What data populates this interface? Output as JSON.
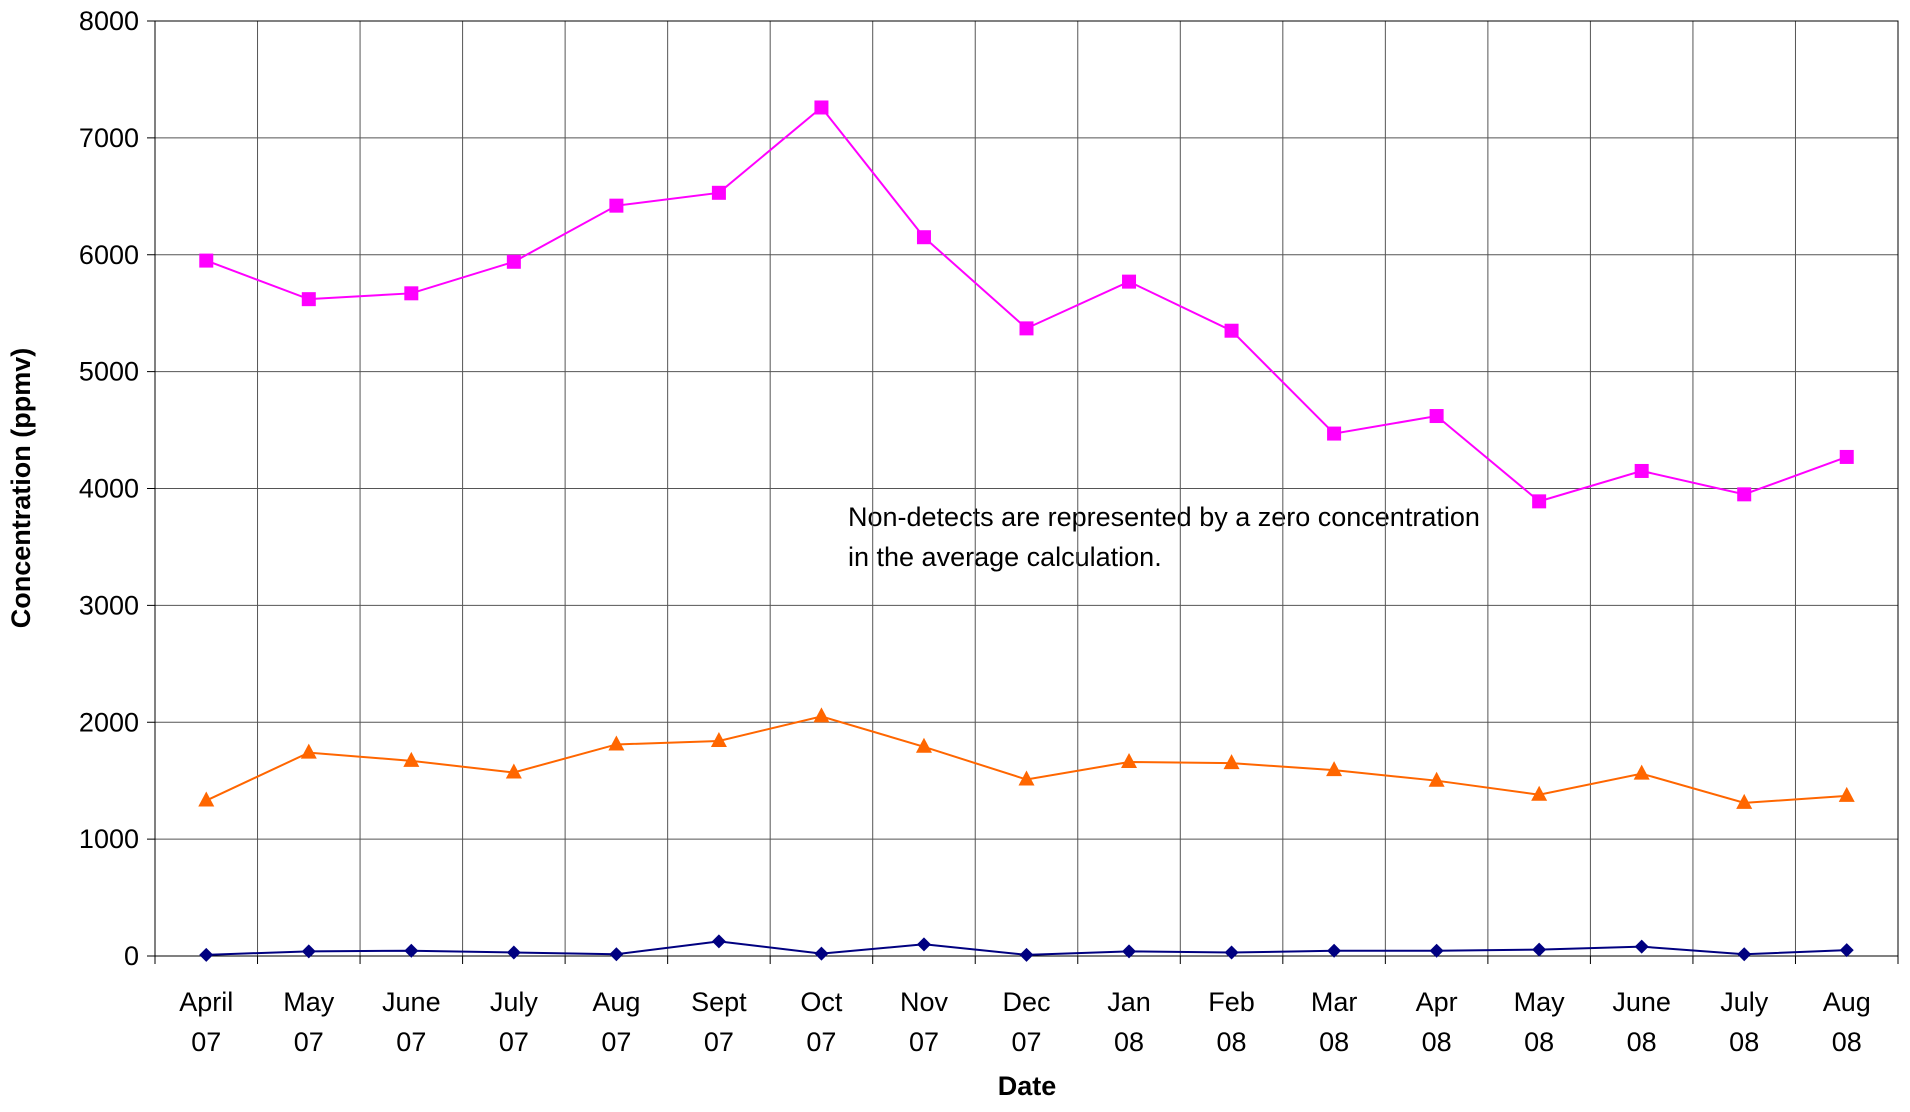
{
  "chart_data": {
    "type": "line",
    "x_label": "Date",
    "y_label": "Concentration (ppmv)",
    "annotations": [
      "Non-detects are represented by a zero concentration",
      "in the average calculation."
    ],
    "categories": [
      "April 07",
      "May 07",
      "June 07",
      "July 07",
      "Aug 07",
      "Sept 07",
      "Oct 07",
      "Nov 07",
      "Dec 07",
      "Jan 08",
      "Feb 08",
      "Mar 08",
      "Apr 08",
      "May 08",
      "June 08",
      "July 08",
      "Aug 08"
    ],
    "series": [
      {
        "color": "#ff00ff",
        "marker": "square",
        "values": [
          5950,
          5620,
          5670,
          5940,
          6420,
          6530,
          7260,
          6150,
          5370,
          5770,
          5350,
          4470,
          4620,
          3890,
          4150,
          3950,
          4270
        ]
      },
      {
        "color": "#ff6600",
        "marker": "triangle",
        "values": [
          1330,
          1740,
          1670,
          1570,
          1810,
          1840,
          2050,
          1790,
          1510,
          1660,
          1650,
          1590,
          1500,
          1380,
          1560,
          1310,
          1370
        ]
      },
      {
        "color": "#000080",
        "marker": "diamond",
        "values": [
          10,
          40,
          45,
          30,
          15,
          125,
          20,
          100,
          10,
          40,
          30,
          45,
          45,
          55,
          80,
          15,
          50
        ]
      }
    ],
    "ylim": [
      0,
      8000
    ],
    "yticks": [
      0,
      1000,
      2000,
      3000,
      4000,
      5000,
      6000,
      7000,
      8000
    ],
    "grid": true
  }
}
